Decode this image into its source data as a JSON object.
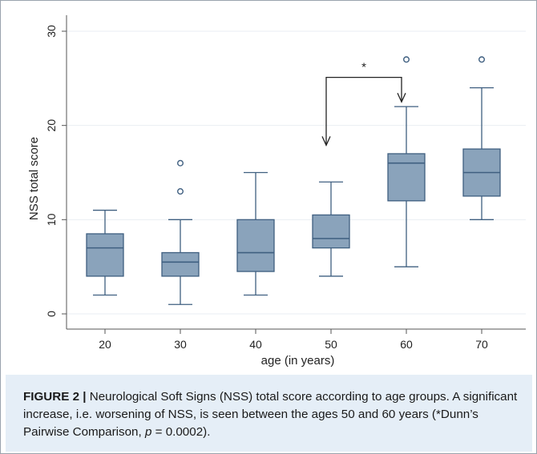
{
  "chart_data": {
    "type": "box",
    "xlabel": "age (in years)",
    "ylabel": "NSS total score",
    "ylim": [
      0,
      30
    ],
    "yticks": [
      "0",
      "10",
      "20",
      "30"
    ],
    "categories": [
      "20",
      "30",
      "40",
      "50",
      "60",
      "70"
    ],
    "boxes": [
      {
        "label": "20",
        "min": 2,
        "q1": 4,
        "median": 7,
        "q3": 8.5,
        "max": 11,
        "outliers": []
      },
      {
        "label": "30",
        "min": 1,
        "q1": 4,
        "median": 5.5,
        "q3": 6.5,
        "max": 10,
        "outliers": [
          13,
          16
        ]
      },
      {
        "label": "40",
        "min": 2,
        "q1": 4.5,
        "median": 6.5,
        "q3": 10,
        "max": 15,
        "outliers": []
      },
      {
        "label": "50",
        "min": 4,
        "q1": 7,
        "median": 8,
        "q3": 10.5,
        "max": 14,
        "outliers": []
      },
      {
        "label": "60",
        "min": 5,
        "q1": 12,
        "median": 16,
        "q3": 17,
        "max": 22,
        "outliers": [
          27
        ]
      },
      {
        "label": "70",
        "min": 10,
        "q1": 12.5,
        "median": 15,
        "q3": 17.5,
        "max": 24,
        "outliers": [
          27
        ]
      }
    ],
    "grid": true,
    "annotation": {
      "text": "*",
      "from": "50",
      "to": "60"
    },
    "colors": {
      "box_fill": "#8aa3bb",
      "box_stroke": "#3f5f80",
      "grid": "#e9eef3",
      "axis": "#555555",
      "background": "#ffffff"
    }
  },
  "caption": {
    "label": "FIGURE 2 |",
    "text": " Neurological Soft Signs (NSS) total score according to age groups. A significant increase, i.e. worsening of NSS, is seen between the ages 50 and 60 years (*Dunn’s Pairwise Comparison, ",
    "p_symbol": "p",
    "p_value": " = 0.0002)."
  }
}
